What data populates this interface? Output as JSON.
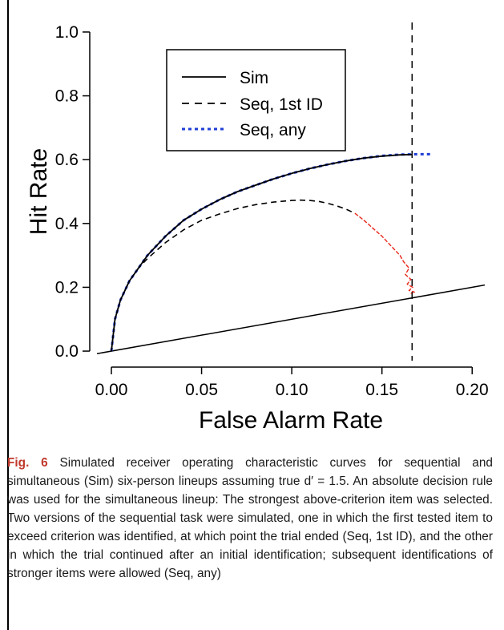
{
  "caption": {
    "label": "Fig. 6",
    "text": " Simulated receiver operating characteristic curves for sequential and simultaneous (Sim) six-person lineups assuming true d′ = 1.5. An absolute decision rule was used for the simultaneous lineup: The strongest above-criterion item was selected. Two versions of the sequential task were simulated, one in which the first tested item to exceed criterion was identified, at which point the trial ended (Seq, 1st ID), and the other in which the trial continued after an initial identification; subsequent identifications of stronger items were allowed (Seq, any)"
  },
  "colors": {
    "sim": "#000000",
    "seq_first": "#000000",
    "seq_any": "#1f3fd6",
    "seq_first_tail": "#e8261a",
    "reference_line": "#000000"
  },
  "chart_data": {
    "type": "line",
    "xlabel": "False Alarm Rate",
    "ylabel": "Hit Rate",
    "xlim": [
      -0.008,
      0.207
    ],
    "ylim": [
      -0.03,
      1.03
    ],
    "x_ticks": [
      0.0,
      0.05,
      0.1,
      0.15,
      0.2
    ],
    "x_tick_labels": [
      "0.00",
      "0.05",
      "0.10",
      "0.15",
      "0.20"
    ],
    "y_ticks": [
      0.0,
      0.2,
      0.4,
      0.6,
      0.8,
      1.0
    ],
    "y_tick_labels": [
      "0.0",
      "0.2",
      "0.4",
      "0.6",
      "0.8",
      "1.0"
    ],
    "grid": false,
    "legend_position": "top-left",
    "series": [
      {
        "name": "Sim",
        "style": "solid",
        "x": [
          0.0,
          0.002,
          0.005,
          0.01,
          0.015,
          0.02,
          0.03,
          0.04,
          0.05,
          0.06,
          0.07,
          0.08,
          0.09,
          0.1,
          0.11,
          0.12,
          0.13,
          0.14,
          0.15,
          0.16,
          0.167
        ],
        "y": [
          0.0,
          0.1,
          0.16,
          0.22,
          0.26,
          0.3,
          0.36,
          0.41,
          0.445,
          0.475,
          0.5,
          0.52,
          0.54,
          0.557,
          0.572,
          0.585,
          0.596,
          0.605,
          0.611,
          0.615,
          0.616
        ]
      },
      {
        "name": "Seq, 1st ID",
        "style": "dashed",
        "x": [
          0.0,
          0.002,
          0.005,
          0.01,
          0.015,
          0.02,
          0.03,
          0.04,
          0.05,
          0.06,
          0.07,
          0.08,
          0.09,
          0.1,
          0.105,
          0.11,
          0.115,
          0.12,
          0.125,
          0.13,
          0.135
        ],
        "y": [
          0.0,
          0.1,
          0.16,
          0.22,
          0.26,
          0.29,
          0.34,
          0.38,
          0.41,
          0.43,
          0.447,
          0.459,
          0.467,
          0.472,
          0.473,
          0.472,
          0.469,
          0.463,
          0.455,
          0.445,
          0.432
        ]
      },
      {
        "name": "Seq, any",
        "style": "dotted",
        "x": [
          0.0,
          0.002,
          0.005,
          0.01,
          0.015,
          0.02,
          0.03,
          0.04,
          0.05,
          0.06,
          0.07,
          0.08,
          0.09,
          0.1,
          0.11,
          0.12,
          0.13,
          0.14,
          0.15,
          0.16,
          0.17,
          0.178
        ],
        "y": [
          0.0,
          0.1,
          0.16,
          0.22,
          0.26,
          0.3,
          0.36,
          0.41,
          0.445,
          0.475,
          0.5,
          0.52,
          0.54,
          0.557,
          0.572,
          0.585,
          0.596,
          0.605,
          0.612,
          0.616,
          0.617,
          0.617
        ]
      }
    ],
    "seq_first_tail": {
      "description_series": "Seq, 1st ID (continued)",
      "x": [
        0.135,
        0.14,
        0.145,
        0.15,
        0.155,
        0.16,
        0.162,
        0.165,
        0.163,
        0.166,
        0.164,
        0.167,
        0.165,
        0.168,
        0.166
      ],
      "y": [
        0.432,
        0.41,
        0.385,
        0.36,
        0.33,
        0.3,
        0.28,
        0.26,
        0.24,
        0.225,
        0.21,
        0.2,
        0.19,
        0.185,
        0.18
      ]
    },
    "reference_line": {
      "x": [
        -0.008,
        0.207
      ],
      "y": [
        -0.008,
        0.207
      ]
    },
    "vertical_line_x": 0.1667
  }
}
